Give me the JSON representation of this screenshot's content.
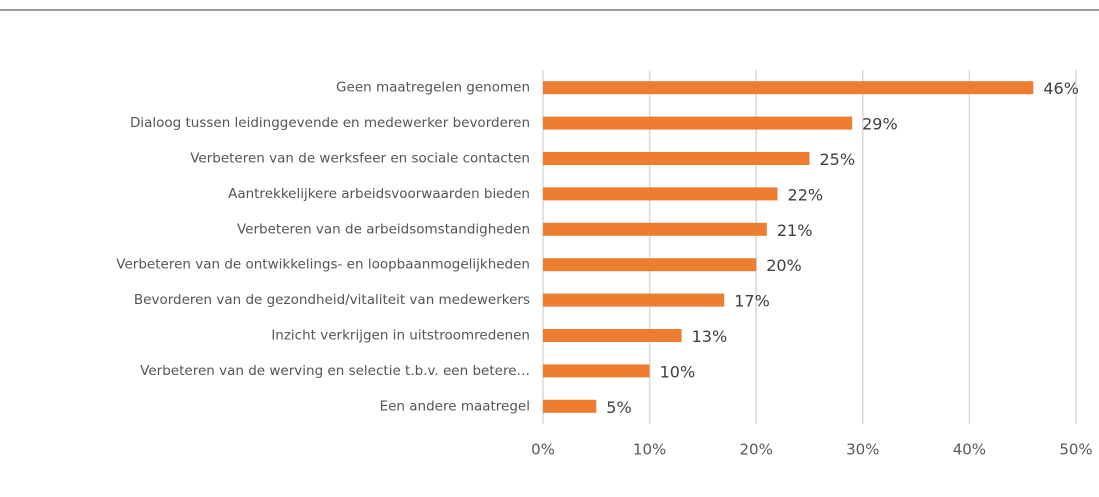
{
  "chart_data": {
    "type": "bar",
    "orientation": "horizontal",
    "categories": [
      "Geen maatregelen genomen",
      "Dialoog tussen leidinggevende en medewerker bevorderen",
      "Verbeteren van de werksfeer en sociale contacten",
      "Aantrekkelijkere arbeidsvoorwaarden bieden",
      "Verbeteren van de arbeidsomstandigheden",
      "Verbeteren van de ontwikkelings- en loopbaanmogelijkheden",
      "Bevorderen van de gezondheid/vitaliteit van medewerkers",
      "Inzicht verkrijgen in uitstroomredenen",
      "Verbeteren van de werving en selectie t.b.v. een betere…",
      "Een andere maatregel"
    ],
    "values": [
      46,
      29,
      25,
      22,
      21,
      20,
      17,
      13,
      10,
      5
    ],
    "value_labels": [
      "46%",
      "29%",
      "25%",
      "22%",
      "21%",
      "20%",
      "17%",
      "13%",
      "10%",
      "5%"
    ],
    "color": "#ed7d31",
    "xlim": [
      0,
      50
    ],
    "xticks": [
      {
        "value": 0,
        "label": "0%"
      },
      {
        "value": 10,
        "label": "10%"
      },
      {
        "value": 20,
        "label": "20%"
      },
      {
        "value": 30,
        "label": "30%"
      },
      {
        "value": 40,
        "label": "40%"
      },
      {
        "value": 50,
        "label": "50%"
      }
    ],
    "grid": true
  }
}
